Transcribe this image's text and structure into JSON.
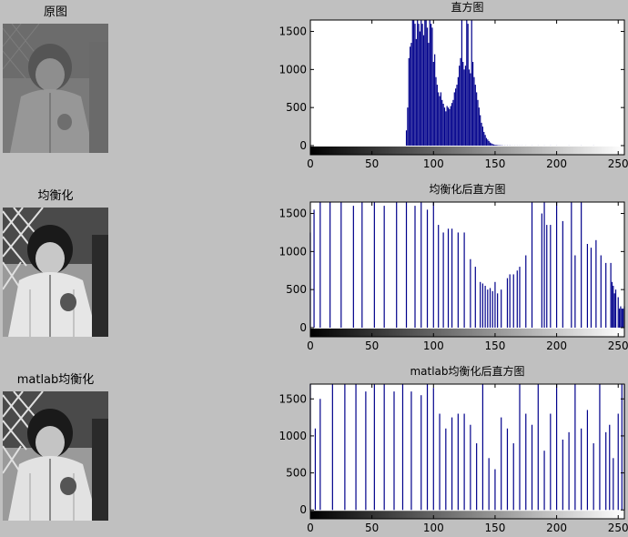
{
  "figure": {
    "colors": {
      "background": "#c0c0c0",
      "bar": "#00008b",
      "axes_bg": "#ffffff"
    }
  },
  "images": [
    {
      "title": "原图",
      "style": "low-contrast"
    },
    {
      "title": "均衡化",
      "style": "high-contrast"
    },
    {
      "title": "matlab均衡化",
      "style": "high-contrast"
    }
  ],
  "chart_data": [
    {
      "type": "bar",
      "title": "直方图",
      "xlim": [
        0,
        255
      ],
      "ylim": [
        -120,
        1650
      ],
      "xticks": [
        0,
        50,
        100,
        150,
        200,
        250
      ],
      "yticks": [
        0,
        500,
        1000,
        1500
      ],
      "colorbar": "grayscale",
      "x": [
        78,
        79,
        80,
        81,
        82,
        83,
        84,
        85,
        86,
        87,
        88,
        89,
        90,
        91,
        92,
        93,
        94,
        95,
        96,
        97,
        98,
        99,
        100,
        101,
        102,
        103,
        104,
        105,
        106,
        107,
        108,
        109,
        110,
        111,
        112,
        113,
        114,
        115,
        116,
        117,
        118,
        119,
        120,
        121,
        122,
        123,
        124,
        125,
        126,
        127,
        128,
        129,
        130,
        131,
        132,
        133,
        134,
        135,
        136,
        137,
        138,
        139,
        140,
        141,
        142,
        143,
        144,
        145,
        146,
        147,
        148,
        149,
        150,
        151,
        152,
        153,
        154,
        155,
        156,
        158,
        160,
        162,
        164,
        166,
        168,
        170,
        172,
        175,
        180,
        185,
        190,
        195,
        200,
        210,
        220,
        230
      ],
      "values": [
        200,
        500,
        1150,
        1300,
        1350,
        1650,
        1650,
        1600,
        1400,
        1650,
        1600,
        1500,
        1650,
        1600,
        1450,
        1650,
        1650,
        1550,
        1350,
        1650,
        1600,
        1550,
        1100,
        1200,
        900,
        800,
        700,
        650,
        700,
        600,
        550,
        500,
        450,
        520,
        500,
        480,
        520,
        560,
        600,
        700,
        750,
        800,
        900,
        1050,
        1150,
        1650,
        1100,
        1000,
        1050,
        1650,
        1600,
        1000,
        950,
        1650,
        1100,
        900,
        800,
        700,
        600,
        500,
        400,
        300,
        250,
        180,
        140,
        100,
        80,
        60,
        40,
        30,
        20,
        15,
        10,
        8,
        6,
        5,
        4,
        3,
        3,
        2,
        2,
        2,
        1,
        1,
        1,
        1,
        1,
        1,
        1,
        1,
        1,
        1,
        1,
        1,
        1,
        1
      ]
    },
    {
      "type": "bar",
      "title": "均衡化后直方图",
      "xlim": [
        0,
        255
      ],
      "ylim": [
        -120,
        1650
      ],
      "xticks": [
        0,
        50,
        100,
        150,
        200,
        250
      ],
      "yticks": [
        0,
        500,
        1000,
        1500
      ],
      "colorbar": "grayscale",
      "x": [
        0,
        3,
        8,
        16,
        25,
        35,
        42,
        52,
        60,
        70,
        78,
        85,
        90,
        95,
        100,
        104,
        108,
        112,
        115,
        120,
        125,
        130,
        134,
        138,
        140,
        142,
        144,
        146,
        148,
        150,
        152,
        155,
        160,
        162,
        165,
        168,
        170,
        175,
        180,
        188,
        190,
        192,
        195,
        200,
        205,
        212,
        215,
        220,
        225,
        228,
        232,
        236,
        240,
        244,
        245,
        246,
        247,
        248,
        250,
        251,
        252,
        253,
        254,
        255
      ],
      "values": [
        1250,
        1550,
        1650,
        1650,
        1650,
        1600,
        1650,
        1650,
        1600,
        1650,
        1650,
        1600,
        1650,
        1550,
        1650,
        1350,
        1250,
        1300,
        1300,
        1250,
        1250,
        900,
        800,
        600,
        580,
        550,
        500,
        520,
        480,
        600,
        450,
        500,
        650,
        700,
        700,
        750,
        800,
        950,
        1650,
        1500,
        1650,
        1350,
        1350,
        1650,
        1400,
        1650,
        950,
        1650,
        1100,
        1050,
        1150,
        950,
        850,
        850,
        600,
        550,
        450,
        500,
        400,
        250,
        280,
        250,
        250,
        280
      ]
    },
    {
      "type": "bar",
      "title": "matlab均衡化后直方图",
      "xlim": [
        0,
        255
      ],
      "ylim": [
        -120,
        1700
      ],
      "xticks": [
        0,
        50,
        100,
        150,
        200,
        250
      ],
      "yticks": [
        0,
        500,
        1000,
        1500
      ],
      "colorbar": "grayscale",
      "x": [
        0,
        4,
        8,
        18,
        28,
        37,
        45,
        52,
        60,
        68,
        75,
        82,
        90,
        95,
        100,
        105,
        110,
        115,
        120,
        125,
        130,
        135,
        140,
        145,
        150,
        155,
        160,
        165,
        170,
        175,
        180,
        185,
        190,
        195,
        200,
        205,
        210,
        215,
        220,
        225,
        230,
        235,
        240,
        243,
        246,
        250,
        253,
        255
      ],
      "values": [
        1700,
        1100,
        1500,
        1700,
        1700,
        1700,
        1600,
        1700,
        1700,
        1600,
        1700,
        1600,
        1550,
        1700,
        1650,
        1300,
        1100,
        1250,
        1300,
        1300,
        1150,
        900,
        1700,
        700,
        550,
        1250,
        1100,
        900,
        1700,
        1300,
        1150,
        1700,
        800,
        1300,
        1700,
        950,
        1050,
        1700,
        1100,
        1350,
        900,
        1700,
        1050,
        1150,
        700,
        1300,
        1700,
        1700
      ]
    }
  ]
}
